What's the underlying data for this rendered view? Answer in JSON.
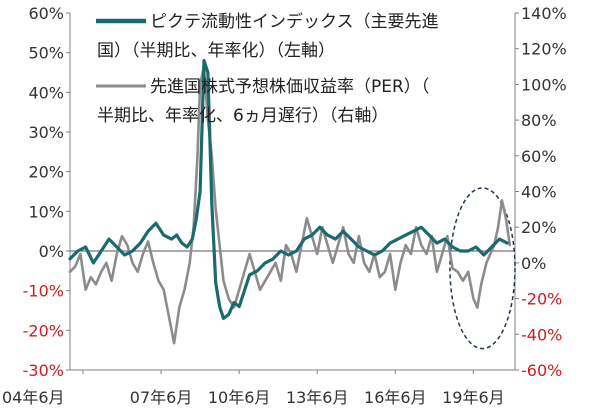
{
  "chart_data": {
    "type": "line",
    "x_tick_labels": [
      "04年6月",
      "07年6月",
      "10年6月",
      "13年6月",
      "16年6月",
      "19年6月"
    ],
    "x_ticks": [
      2004.5,
      2007.5,
      2010.5,
      2013.5,
      2016.5,
      2019.5
    ],
    "xlim": [
      2004.0,
      2021.1
    ],
    "left_axis": {
      "ylim": [
        -30,
        60
      ],
      "ticks": [
        -30,
        -20,
        -10,
        0,
        10,
        20,
        30,
        40,
        50,
        60
      ],
      "tick_labels": [
        "-30%",
        "-20%",
        "-10%",
        "0%",
        "10%",
        "20%",
        "30%",
        "40%",
        "50%",
        "60%"
      ]
    },
    "right_axis": {
      "ylim": [
        -60,
        140
      ],
      "ticks": [
        -60,
        -40,
        -20,
        0,
        20,
        40,
        60,
        80,
        100,
        120,
        140
      ],
      "tick_labels": [
        "-60%",
        "-40%",
        "-20%",
        "0%",
        "20%",
        "40%",
        "60%",
        "80%",
        "100%",
        "120%",
        "140%"
      ]
    },
    "negative_tick_color": "#d01c1c",
    "grid": false,
    "legend_position": "top-center",
    "series": [
      {
        "name": "ピクテ流動性インデックス（主要先進国）（半期比、年率化）（左軸）",
        "legend_lines": [
          "ピクテ流動性インデックス（主要先進",
          "国）（半期比、年率化）（左軸）"
        ],
        "axis": "left",
        "color": "#1b6a6e",
        "x": [
          2004.0,
          2004.3,
          2004.6,
          2004.9,
          2005.2,
          2005.5,
          2005.8,
          2006.1,
          2006.4,
          2006.7,
          2007.0,
          2007.3,
          2007.6,
          2007.9,
          2008.1,
          2008.3,
          2008.5,
          2008.7,
          2008.85,
          2009.0,
          2009.15,
          2009.3,
          2009.45,
          2009.6,
          2009.75,
          2009.9,
          2010.1,
          2010.3,
          2010.5,
          2010.7,
          2010.9,
          2011.2,
          2011.5,
          2011.8,
          2012.1,
          2012.4,
          2012.7,
          2013.0,
          2013.3,
          2013.6,
          2013.9,
          2014.2,
          2014.5,
          2014.8,
          2015.1,
          2015.4,
          2015.7,
          2016.0,
          2016.3,
          2016.6,
          2016.9,
          2017.2,
          2017.5,
          2017.8,
          2018.1,
          2018.4,
          2018.7,
          2019.0,
          2019.3,
          2019.6,
          2019.9,
          2020.2,
          2020.5,
          2020.8
        ],
        "y": [
          -2,
          0,
          1,
          -3,
          0,
          3,
          1,
          -1,
          0,
          2,
          5,
          7,
          4,
          3,
          4,
          2,
          1,
          3,
          8,
          15,
          48,
          45,
          12,
          -8,
          -14,
          -17,
          -16,
          -13,
          -14,
          -10,
          -6,
          -5,
          -3,
          -2,
          0,
          -1,
          0,
          3,
          4,
          6,
          4,
          3,
          5,
          3,
          1,
          0,
          -1,
          0,
          2,
          3,
          4,
          5,
          6,
          4,
          2,
          3,
          1,
          0,
          0,
          1,
          -1,
          1,
          3,
          2
        ]
      },
      {
        "name": "先進国株式予想株価収益率（PER）（半期比、年率化、6ヵ月遅行）（右軸）",
        "legend_lines": [
          "先進国株式予想株価収益率（PER）（",
          "半期比、年率化、6ヵ月遅行）（右軸）"
        ],
        "axis": "right",
        "color": "#8c8c8c",
        "x": [
          2004.0,
          2004.2,
          2004.4,
          2004.6,
          2004.8,
          2005.0,
          2005.2,
          2005.4,
          2005.6,
          2005.8,
          2006.0,
          2006.2,
          2006.4,
          2006.6,
          2006.8,
          2007.0,
          2007.2,
          2007.4,
          2007.6,
          2007.8,
          2008.0,
          2008.2,
          2008.4,
          2008.6,
          2008.75,
          2008.9,
          2009.0,
          2009.15,
          2009.3,
          2009.45,
          2009.6,
          2009.75,
          2009.9,
          2010.1,
          2010.3,
          2010.5,
          2010.7,
          2010.9,
          2011.1,
          2011.3,
          2011.5,
          2011.7,
          2011.9,
          2012.1,
          2012.3,
          2012.5,
          2012.7,
          2012.9,
          2013.1,
          2013.3,
          2013.5,
          2013.7,
          2013.9,
          2014.1,
          2014.3,
          2014.5,
          2014.7,
          2014.9,
          2015.1,
          2015.3,
          2015.5,
          2015.7,
          2015.9,
          2016.1,
          2016.3,
          2016.5,
          2016.7,
          2016.9,
          2017.1,
          2017.3,
          2017.5,
          2017.7,
          2017.9,
          2018.1,
          2018.3,
          2018.5,
          2018.7,
          2018.9,
          2019.1,
          2019.3,
          2019.5,
          2019.65,
          2019.8,
          2020.0,
          2020.15,
          2020.3,
          2020.45,
          2020.6,
          2020.75,
          2020.9
        ],
        "y": [
          -5,
          -2,
          5,
          -15,
          -8,
          -12,
          -5,
          0,
          -10,
          5,
          15,
          10,
          0,
          -5,
          5,
          12,
          0,
          -10,
          -15,
          -30,
          -45,
          -25,
          -15,
          0,
          20,
          60,
          100,
          110,
          80,
          60,
          30,
          10,
          -10,
          -20,
          -25,
          -15,
          -5,
          5,
          -5,
          -15,
          -10,
          -5,
          0,
          -10,
          10,
          5,
          -5,
          10,
          25,
          15,
          5,
          20,
          10,
          0,
          10,
          20,
          5,
          0,
          15,
          0,
          -5,
          5,
          -8,
          -5,
          5,
          -15,
          0,
          10,
          5,
          20,
          10,
          5,
          15,
          -5,
          5,
          15,
          -3,
          -5,
          -10,
          -5,
          -20,
          -25,
          -12,
          0,
          5,
          10,
          20,
          35,
          25,
          10
        ]
      }
    ],
    "annotation": {
      "shape": "dashed-ellipse",
      "color": "#1f3553",
      "x_range": [
        2018.6,
        2021.1
      ],
      "right_axis_range": [
        -48,
        42
      ]
    }
  }
}
